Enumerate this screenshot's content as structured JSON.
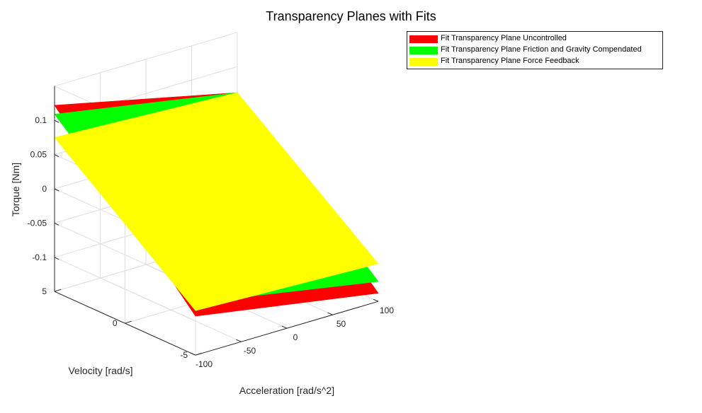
{
  "chart_data": {
    "type": "surface3d",
    "title": "Transparency Planes with Fits",
    "xlabel": "Acceleration [rad/s^2]",
    "ylabel": "Velocity [rad/s]",
    "zlabel": "Torque [Nm]",
    "xlim": [
      -100,
      100
    ],
    "ylim": [
      -5,
      5
    ],
    "zlim": [
      -0.15,
      0.15
    ],
    "xticks": [
      "-100",
      "-50",
      "0",
      "50",
      "100"
    ],
    "yticks": [
      "-5",
      "0",
      "5"
    ],
    "zticks": [
      "-0.1",
      "-0.05",
      "0",
      "0.05",
      "0.1"
    ],
    "grid": true,
    "legend_position": "top-right",
    "series": [
      {
        "name": "Fit Transparency Plane Uncontrolled",
        "color": "#ff0000",
        "corners": [
          {
            "x": -100,
            "y": 5,
            "z": 0.122
          },
          {
            "x": 100,
            "y": 5,
            "z": 0.062
          },
          {
            "x": 100,
            "y": -5,
            "z": -0.138
          },
          {
            "x": -100,
            "y": -5,
            "z": -0.093
          }
        ]
      },
      {
        "name": "Fit Transparency Plane Friction and Gravity Compendated",
        "color": "#00ff00",
        "corners": [
          {
            "x": -100,
            "y": 5,
            "z": 0.109
          },
          {
            "x": 100,
            "y": 5,
            "z": 0.062
          },
          {
            "x": 100,
            "y": -5,
            "z": -0.121
          },
          {
            "x": -100,
            "y": -5,
            "z": -0.073
          }
        ]
      },
      {
        "name": "Fit Transparency Plane Force Feedback",
        "color": "#ffff00",
        "corners": [
          {
            "x": -100,
            "y": 5,
            "z": 0.075
          },
          {
            "x": 100,
            "y": 5,
            "z": 0.062
          },
          {
            "x": 100,
            "y": -5,
            "z": -0.095
          },
          {
            "x": -100,
            "y": -5,
            "z": -0.085
          }
        ]
      }
    ]
  }
}
